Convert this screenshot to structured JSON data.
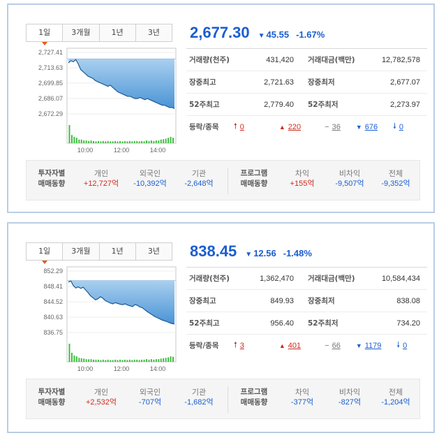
{
  "panels": [
    {
      "tabs": [
        "1일",
        "3개월",
        "1년",
        "3년"
      ],
      "price": "2,677.30",
      "change": "45.55",
      "change_dir": "▼",
      "rate": "-1.67%",
      "stats": [
        {
          "l1": "거래량(천주)",
          "v1": "431,420",
          "l2": "거래대금(백만)",
          "v2": "12,782,578"
        },
        {
          "l1": "장중최고",
          "v1": "2,721.63",
          "l2": "장중최저",
          "v2": "2,677.07"
        },
        {
          "l1": "52주최고",
          "v1": "2,779.40",
          "l2": "52주최저",
          "v2": "2,273.97"
        }
      ],
      "updown": {
        "label": "등락/종목",
        "upper": "0",
        "up": "220",
        "flat": "36",
        "down": "676",
        "lower": "0"
      },
      "investor": {
        "title1": "투자자별",
        "title2": "매매동향",
        "cols": [
          {
            "h": "개인",
            "v": "+12,727억",
            "c": "red"
          },
          {
            "h": "외국인",
            "v": "-10,392억",
            "c": "blue"
          },
          {
            "h": "기관",
            "v": "-2,648억",
            "c": "blue"
          }
        ],
        "ptitle1": "프로그램",
        "ptitle2": "매매동향",
        "pcols": [
          {
            "h": "차익",
            "v": "+155억",
            "c": "red"
          },
          {
            "h": "비차익",
            "v": "-9,507억",
            "c": "blue"
          },
          {
            "h": "전체",
            "v": "-9,352억",
            "c": "blue"
          }
        ]
      },
      "chart_data": {
        "type": "area",
        "yticks": [
          "2,727.41",
          "2,713.63",
          "2,699.85",
          "2,686.07",
          "2,672.29"
        ],
        "ylim": [
          2672.29,
          2727.41
        ],
        "xticks": [
          "10:00",
          "12:00",
          "14:00"
        ],
        "baseline": 2721.63,
        "values": [
          2718,
          2720,
          2719,
          2721,
          2717,
          2712,
          2710,
          2708,
          2706,
          2705,
          2704,
          2702,
          2701,
          2700,
          2699,
          2698,
          2697,
          2698,
          2696,
          2694,
          2692,
          2691,
          2690,
          2689,
          2688,
          2688,
          2687,
          2686,
          2686,
          2687,
          2686,
          2685,
          2686,
          2685,
          2684,
          2683,
          2682,
          2681,
          2680,
          2680,
          2679,
          2678,
          2678,
          2677
        ],
        "volume": [
          1.0,
          0.45,
          0.35,
          0.3,
          0.2,
          0.2,
          0.15,
          0.15,
          0.12,
          0.15,
          0.12,
          0.1,
          0.12,
          0.1,
          0.12,
          0.1,
          0.12,
          0.1,
          0.1,
          0.12,
          0.1,
          0.12,
          0.1,
          0.12,
          0.1,
          0.12,
          0.1,
          0.12,
          0.12,
          0.1,
          0.12,
          0.1,
          0.15,
          0.12,
          0.15,
          0.12,
          0.15,
          0.15,
          0.2,
          0.22,
          0.25,
          0.3,
          0.35,
          0.3
        ]
      }
    },
    {
      "tabs": [
        "1일",
        "3개월",
        "1년",
        "3년"
      ],
      "price": "838.45",
      "change": "12.56",
      "change_dir": "▼",
      "rate": "-1.48%",
      "stats": [
        {
          "l1": "거래량(천주)",
          "v1": "1,362,470",
          "l2": "거래대금(백만)",
          "v2": "10,584,434"
        },
        {
          "l1": "장중최고",
          "v1": "849.93",
          "l2": "장중최저",
          "v2": "838.08"
        },
        {
          "l1": "52주최고",
          "v1": "956.40",
          "l2": "52주최저",
          "v2": "734.20"
        }
      ],
      "updown": {
        "label": "등락/종목",
        "upper": "3",
        "up": "401",
        "flat": "66",
        "down": "1179",
        "lower": "0"
      },
      "investor": {
        "title1": "투자자별",
        "title2": "매매동향",
        "cols": [
          {
            "h": "개인",
            "v": "+2,532억",
            "c": "red"
          },
          {
            "h": "외국인",
            "v": "-707억",
            "c": "blue"
          },
          {
            "h": "기관",
            "v": "-1,682억",
            "c": "blue"
          }
        ],
        "ptitle1": "프로그램",
        "ptitle2": "매매동향",
        "pcols": [
          {
            "h": "차익",
            "v": "-377억",
            "c": "blue"
          },
          {
            "h": "비차익",
            "v": "-827억",
            "c": "blue"
          },
          {
            "h": "전체",
            "v": "-1,204억",
            "c": "blue"
          }
        ]
      },
      "chart_data": {
        "type": "area",
        "yticks": [
          "852.29",
          "848.41",
          "844.52",
          "840.63",
          "836.75"
        ],
        "ylim": [
          836.75,
          852.29
        ],
        "xticks": [
          "10:00",
          "12:00",
          "14:00"
        ],
        "baseline": 849.9,
        "values": [
          849.5,
          849.8,
          848.6,
          848.0,
          848.3,
          847.9,
          848.2,
          847.5,
          846.8,
          846.0,
          845.5,
          845.0,
          845.3,
          845.8,
          845.4,
          844.8,
          844.5,
          844.2,
          844.0,
          844.3,
          844.1,
          843.9,
          843.8,
          844.0,
          843.7,
          843.5,
          843.3,
          843.8,
          843.6,
          843.2,
          843.0,
          842.5,
          842.0,
          841.6,
          841.2,
          840.8,
          840.5,
          840.2,
          839.9,
          839.7,
          839.5,
          839.2,
          839.0,
          838.9
        ],
        "volume": [
          1.0,
          0.5,
          0.35,
          0.3,
          0.22,
          0.2,
          0.18,
          0.15,
          0.14,
          0.15,
          0.12,
          0.12,
          0.12,
          0.1,
          0.12,
          0.1,
          0.12,
          0.1,
          0.1,
          0.12,
          0.1,
          0.12,
          0.1,
          0.12,
          0.1,
          0.12,
          0.1,
          0.12,
          0.12,
          0.1,
          0.12,
          0.12,
          0.15,
          0.12,
          0.15,
          0.12,
          0.15,
          0.15,
          0.18,
          0.2,
          0.22,
          0.25,
          0.3,
          0.28
        ]
      }
    }
  ]
}
